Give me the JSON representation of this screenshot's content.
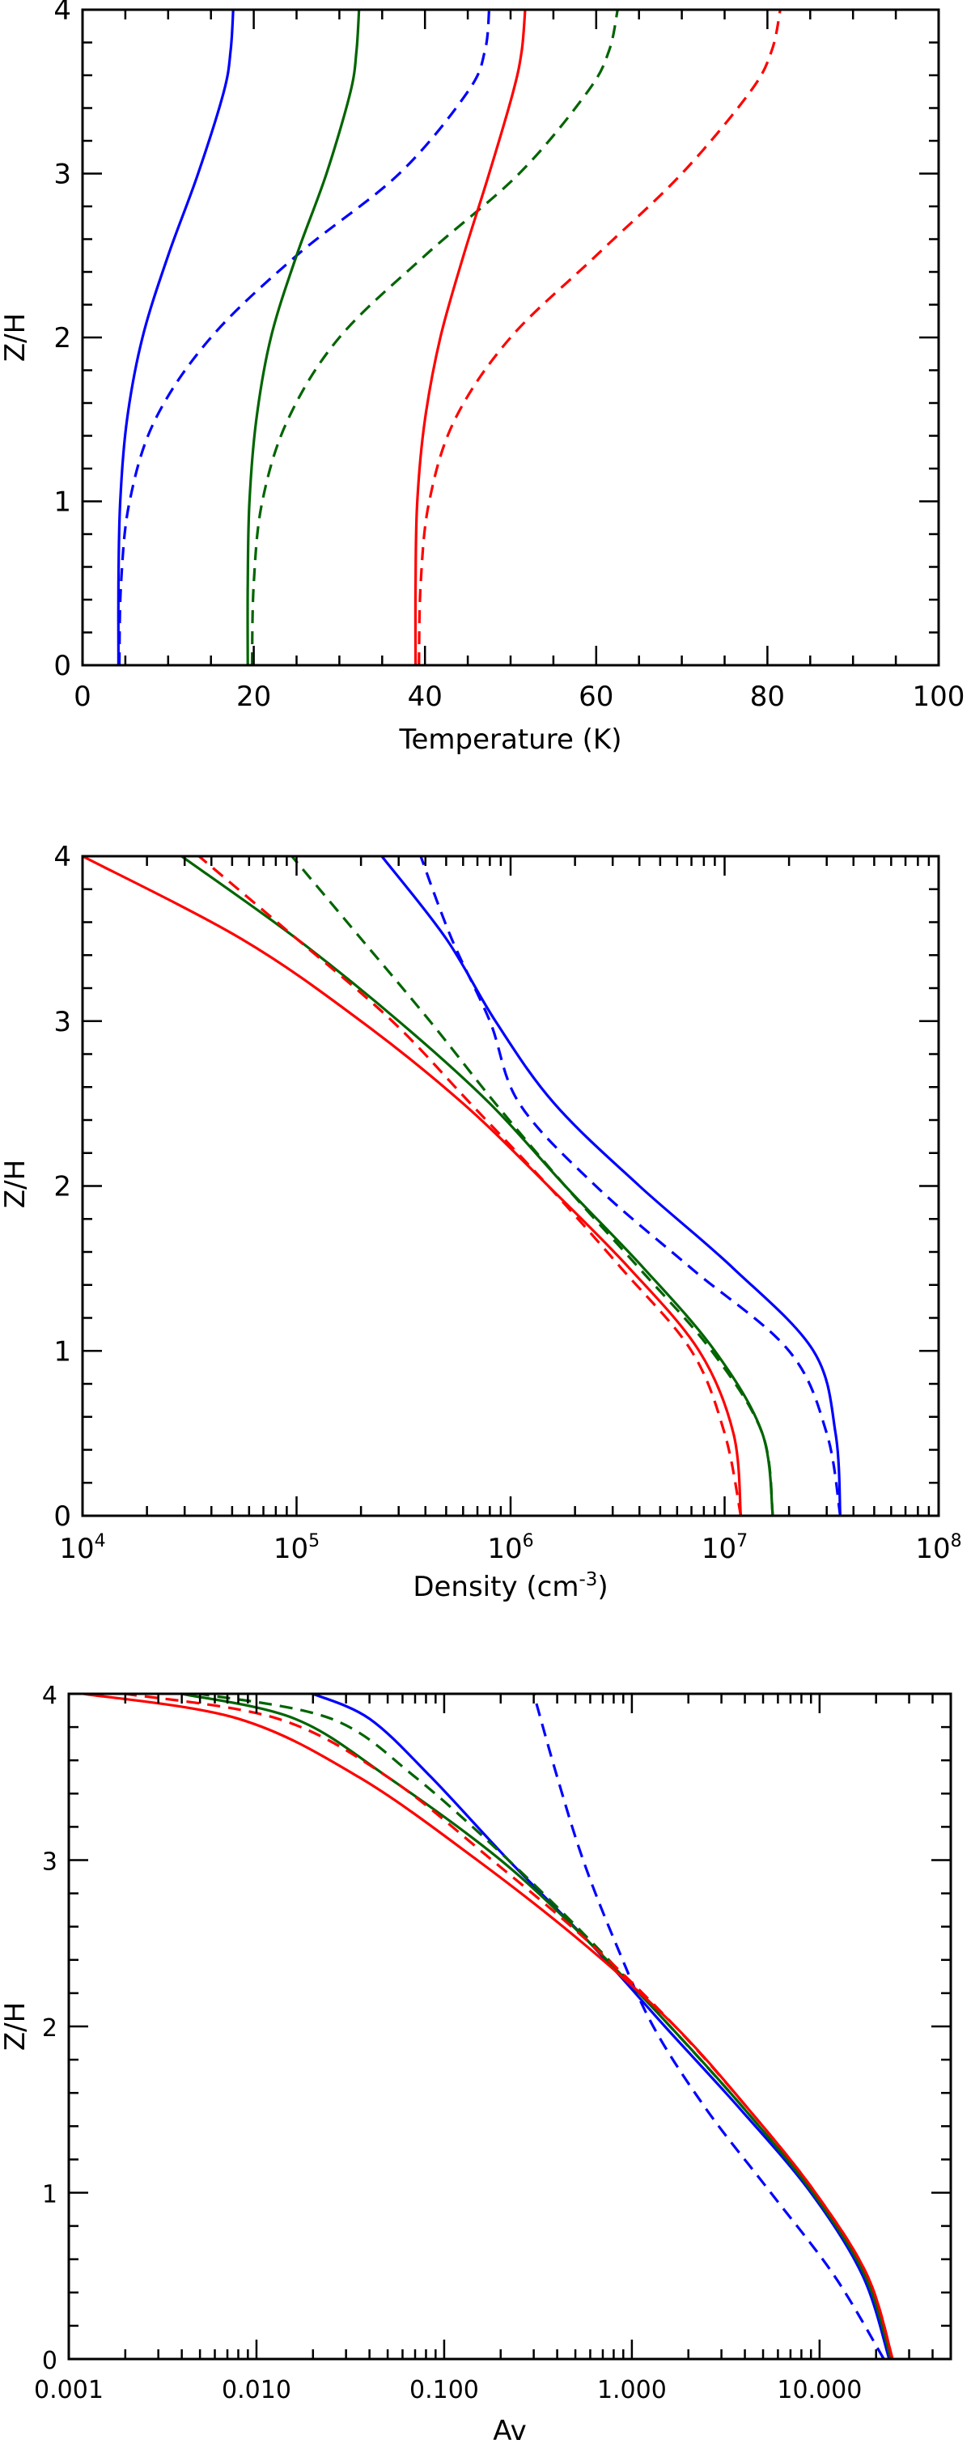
{
  "chart_data": [
    {
      "type": "line",
      "xlabel": "Temperature (K)",
      "ylabel": "Z/H",
      "xscale": "linear",
      "xlim": [
        0,
        100
      ],
      "ylim": [
        0,
        4
      ],
      "x_ticks": [
        0,
        20,
        40,
        60,
        80,
        100
      ],
      "x_tick_labels": [
        "0",
        "20",
        "40",
        "60",
        "80",
        "100"
      ],
      "y_ticks": [
        0,
        1,
        2,
        3,
        4
      ],
      "y_tick_labels": [
        "0",
        "1",
        "2",
        "3",
        "4"
      ],
      "series": [
        {
          "color": "#0000ff",
          "dash": "solid",
          "points": [
            [
              4.2,
              0
            ],
            [
              4.2,
              0.5
            ],
            [
              4.4,
              1.0
            ],
            [
              5.2,
              1.5
            ],
            [
              7,
              2.0
            ],
            [
              10,
              2.5
            ],
            [
              13.5,
              3.0
            ],
            [
              16.5,
              3.5
            ],
            [
              17.3,
              3.75
            ],
            [
              17.6,
              4.0
            ]
          ]
        },
        {
          "color": "#0000ff",
          "dash": "dashed",
          "points": [
            [
              4.3,
              0
            ],
            [
              4.5,
              0.5
            ],
            [
              5.5,
              1.0
            ],
            [
              8.5,
              1.5
            ],
            [
              15,
              2.0
            ],
            [
              25,
              2.5
            ],
            [
              37,
              3.0
            ],
            [
              45,
              3.5
            ],
            [
              47,
              3.75
            ],
            [
              47.5,
              4.0
            ]
          ]
        },
        {
          "color": "#006400",
          "dash": "solid",
          "points": [
            [
              19.3,
              0
            ],
            [
              19.3,
              0.5
            ],
            [
              19.5,
              1.0
            ],
            [
              20.3,
              1.5
            ],
            [
              22,
              2.0
            ],
            [
              25,
              2.5
            ],
            [
              28.5,
              3.0
            ],
            [
              31.3,
              3.5
            ],
            [
              32,
              3.75
            ],
            [
              32.3,
              4.0
            ]
          ]
        },
        {
          "color": "#006400",
          "dash": "dashed",
          "points": [
            [
              19.8,
              0
            ],
            [
              20,
              0.5
            ],
            [
              21,
              1.0
            ],
            [
              24,
              1.5
            ],
            [
              30,
              2.0
            ],
            [
              40,
              2.5
            ],
            [
              51,
              3.0
            ],
            [
              59,
              3.5
            ],
            [
              61.5,
              3.75
            ],
            [
              62.5,
              4.0
            ]
          ]
        },
        {
          "color": "#ff0000",
          "dash": "solid",
          "points": [
            [
              38.9,
              0
            ],
            [
              38.9,
              0.5
            ],
            [
              39.1,
              1.0
            ],
            [
              40,
              1.5
            ],
            [
              41.8,
              2.0
            ],
            [
              44.5,
              2.5
            ],
            [
              47.5,
              3.0
            ],
            [
              50.3,
              3.5
            ],
            [
              51.3,
              3.75
            ],
            [
              51.7,
              4.0
            ]
          ]
        },
        {
          "color": "#ff0000",
          "dash": "dashed",
          "points": [
            [
              39.3,
              0
            ],
            [
              39.5,
              0.5
            ],
            [
              40.5,
              1.0
            ],
            [
              43.5,
              1.5
            ],
            [
              50,
              2.0
            ],
            [
              60,
              2.5
            ],
            [
              70,
              3.0
            ],
            [
              78,
              3.5
            ],
            [
              80.5,
              3.75
            ],
            [
              81.5,
              4.0
            ]
          ]
        }
      ]
    },
    {
      "type": "line",
      "xlabel": "Density (cm",
      "xlabel_sup": "-3",
      "xlabel_suffix": ")",
      "ylabel": "Z/H",
      "xscale": "log",
      "xlim": [
        10000,
        100000000
      ],
      "ylim": [
        0,
        4
      ],
      "x_ticks": [
        10000,
        100000,
        1000000,
        10000000,
        100000000
      ],
      "x_tick_labels": [
        {
          "base": "10",
          "exp": "4"
        },
        {
          "base": "10",
          "exp": "5"
        },
        {
          "base": "10",
          "exp": "6"
        },
        {
          "base": "10",
          "exp": "7"
        },
        {
          "base": "10",
          "exp": "8"
        }
      ],
      "y_ticks": [
        0,
        1,
        2,
        3,
        4
      ],
      "y_tick_labels": [
        "0",
        "1",
        "2",
        "3",
        "4"
      ],
      "series": [
        {
          "color": "#0000ff",
          "dash": "solid",
          "points": [
            [
              34700000,
              0
            ],
            [
              33000000,
              0.5
            ],
            [
              26000000,
              1.0
            ],
            [
              11000000,
              1.5
            ],
            [
              4000000,
              2.0
            ],
            [
              1600000,
              2.5
            ],
            [
              850000,
              3.0
            ],
            [
              500000,
              3.5
            ],
            [
              250000,
              4.0
            ]
          ]
        },
        {
          "color": "#0000ff",
          "dash": "dashed",
          "points": [
            [
              34700000,
              0
            ],
            [
              30000000,
              0.5
            ],
            [
              20000000,
              1.0
            ],
            [
              7000000,
              1.5
            ],
            [
              2500000,
              2.0
            ],
            [
              1100000,
              2.5
            ],
            [
              800000,
              3.0
            ],
            [
              530000,
              3.5
            ],
            [
              380000,
              4.0
            ]
          ]
        },
        {
          "color": "#006400",
          "dash": "solid",
          "points": [
            [
              16800000,
              0
            ],
            [
              15000000,
              0.5
            ],
            [
              9000000,
              1.0
            ],
            [
              4200000,
              1.5
            ],
            [
              1800000,
              2.0
            ],
            [
              800000,
              2.5
            ],
            [
              300000,
              3.0
            ],
            [
              100000,
              3.5
            ],
            [
              29000,
              4.0
            ]
          ]
        },
        {
          "color": "#006400",
          "dash": "dashed",
          "points": [
            [
              16800000,
              0
            ],
            [
              15000000,
              0.5
            ],
            [
              8700000,
              1.0
            ],
            [
              4000000,
              1.5
            ],
            [
              1800000,
              2.0
            ],
            [
              850000,
              2.5
            ],
            [
              420000,
              3.0
            ],
            [
              200000,
              3.5
            ],
            [
              95000,
              4.0
            ]
          ]
        },
        {
          "color": "#ff0000",
          "dash": "solid",
          "points": [
            [
              11900000,
              0
            ],
            [
              11000000,
              0.5
            ],
            [
              7600000,
              1.0
            ],
            [
              3600000,
              1.5
            ],
            [
              1500000,
              2.0
            ],
            [
              600000,
              2.5
            ],
            [
              200000,
              3.0
            ],
            [
              55000,
              3.5
            ],
            [
              10000,
              4.0
            ]
          ]
        },
        {
          "color": "#ff0000",
          "dash": "dashed",
          "points": [
            [
              11900000,
              0
            ],
            [
              10000000,
              0.5
            ],
            [
              7000000,
              1.0
            ],
            [
              3300000,
              1.5
            ],
            [
              1500000,
              2.0
            ],
            [
              650000,
              2.5
            ],
            [
              280000,
              3.0
            ],
            [
              100000,
              3.5
            ],
            [
              35000,
              4.0
            ]
          ]
        }
      ]
    },
    {
      "type": "line",
      "xlabel": "Av",
      "ylabel": "Z/H",
      "xscale": "log",
      "xlim": [
        0.001,
        50
      ],
      "ylim": [
        0,
        4
      ],
      "x_ticks": [
        0.001,
        0.01,
        0.1,
        1,
        10
      ],
      "x_tick_labels": [
        "0.001",
        "0.010",
        "0.100",
        "1.000",
        "10.000"
      ],
      "y_ticks": [
        0,
        1,
        2,
        3,
        4
      ],
      "y_tick_labels": [
        "0",
        "1",
        "2",
        "3",
        "4"
      ],
      "series": [
        {
          "color": "#0000ff",
          "dash": "solid",
          "points": [
            [
              23.5,
              0
            ],
            [
              17,
              0.5
            ],
            [
              9,
              1.0
            ],
            [
              3.8,
              1.5
            ],
            [
              1.5,
              2.0
            ],
            [
              0.6,
              2.5
            ],
            [
              0.22,
              3.0
            ],
            [
              0.085,
              3.5
            ],
            [
              0.04,
              3.85
            ],
            [
              0.02,
              4.0
            ]
          ]
        },
        {
          "color": "#0000ff",
          "dash": "dashed",
          "points": [
            [
              22,
              0
            ],
            [
              12,
              0.5
            ],
            [
              5.5,
              1.0
            ],
            [
              2.5,
              1.5
            ],
            [
              1.3,
              2.0
            ],
            [
              0.82,
              2.5
            ],
            [
              0.55,
              3.0
            ],
            [
              0.4,
              3.5
            ],
            [
              0.3,
              4.0
            ]
          ]
        },
        {
          "color": "#006400",
          "dash": "solid",
          "points": [
            [
              24,
              0
            ],
            [
              17.5,
              0.5
            ],
            [
              9.2,
              1.0
            ],
            [
              4,
              1.5
            ],
            [
              1.6,
              2.0
            ],
            [
              0.6,
              2.5
            ],
            [
              0.2,
              3.0
            ],
            [
              0.05,
              3.5
            ],
            [
              0.016,
              3.85
            ],
            [
              0.004,
              4.0
            ]
          ]
        },
        {
          "color": "#006400",
          "dash": "dashed",
          "points": [
            [
              24,
              0
            ],
            [
              17.5,
              0.5
            ],
            [
              9.2,
              1.0
            ],
            [
              4,
              1.5
            ],
            [
              1.6,
              2.0
            ],
            [
              0.62,
              2.5
            ],
            [
              0.22,
              3.0
            ],
            [
              0.07,
              3.5
            ],
            [
              0.025,
              3.85
            ],
            [
              0.005,
              4.0
            ]
          ]
        },
        {
          "color": "#ff0000",
          "dash": "solid",
          "points": [
            [
              24.5,
              0
            ],
            [
              18,
              0.5
            ],
            [
              9.5,
              1.0
            ],
            [
              4.2,
              1.5
            ],
            [
              1.7,
              2.0
            ],
            [
              0.55,
              2.5
            ],
            [
              0.15,
              3.0
            ],
            [
              0.035,
              3.5
            ],
            [
              0.008,
              3.85
            ],
            [
              0.0012,
              4.0
            ]
          ]
        },
        {
          "color": "#ff0000",
          "dash": "dashed",
          "points": [
            [
              24.5,
              0
            ],
            [
              18,
              0.5
            ],
            [
              9.5,
              1.0
            ],
            [
              4.2,
              1.5
            ],
            [
              1.7,
              2.0
            ],
            [
              0.6,
              2.5
            ],
            [
              0.18,
              3.0
            ],
            [
              0.05,
              3.5
            ],
            [
              0.013,
              3.85
            ],
            [
              0.002,
              4.0
            ]
          ]
        }
      ]
    }
  ]
}
